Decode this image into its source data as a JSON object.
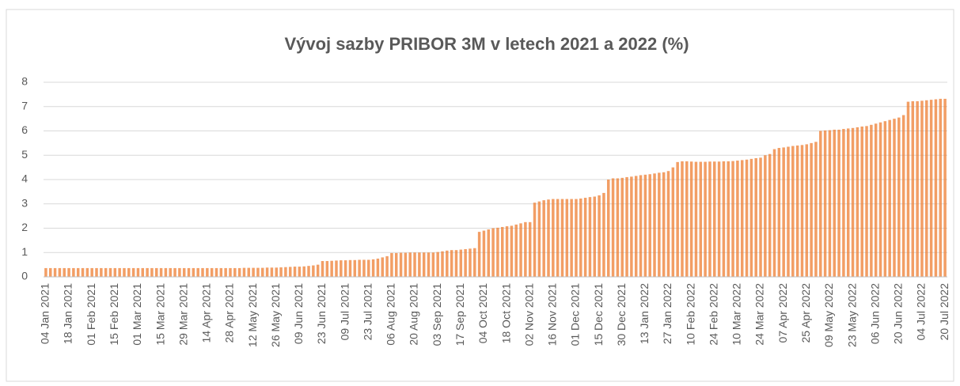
{
  "chart_data": {
    "type": "bar",
    "title": "Vývoj sazby PRIBOR 3M v letech 2021 a 2022 (%)",
    "categories": [
      "04 Jan 2021",
      null,
      null,
      null,
      null,
      "18 Jan 2021",
      null,
      null,
      null,
      null,
      "01 Feb 2021",
      null,
      null,
      null,
      null,
      "15 Feb 2021",
      null,
      null,
      null,
      null,
      "01 Mar 2021",
      null,
      null,
      null,
      null,
      "15 Mar 2021",
      null,
      null,
      null,
      null,
      "29 Mar 2021",
      null,
      null,
      null,
      null,
      "14 Apr 2021",
      null,
      null,
      null,
      null,
      "28 Apr 2021",
      null,
      null,
      null,
      null,
      "12 May 2021",
      null,
      null,
      null,
      null,
      "26 May 2021",
      null,
      null,
      null,
      null,
      "09 Jun 2021",
      null,
      null,
      null,
      null,
      "23 Jun 2021",
      null,
      null,
      null,
      null,
      "09 Jul 2021",
      null,
      null,
      null,
      null,
      "23 Jul 2021",
      null,
      null,
      null,
      null,
      "06 Aug 2021",
      null,
      null,
      null,
      null,
      "20 Aug 2021",
      null,
      null,
      null,
      null,
      "03 Sep 2021",
      null,
      null,
      null,
      null,
      "17 Sep 2021",
      null,
      null,
      null,
      null,
      "04 Oct 2021",
      null,
      null,
      null,
      null,
      "18 Oct 2021",
      null,
      null,
      null,
      null,
      "02 Nov 2021",
      null,
      null,
      null,
      null,
      "16 Nov 2021",
      null,
      null,
      null,
      null,
      "01 Dec 2021",
      null,
      null,
      null,
      null,
      "15 Dec 2021",
      null,
      null,
      null,
      null,
      "30 Dec 2021",
      null,
      null,
      null,
      null,
      "13 Jan 2022",
      null,
      null,
      null,
      null,
      "27 Jan 2022",
      null,
      null,
      null,
      null,
      "10 Feb 2022",
      null,
      null,
      null,
      null,
      "24 Feb 2022",
      null,
      null,
      null,
      null,
      "10 Mar 2022",
      null,
      null,
      null,
      null,
      "24 Mar 2022",
      null,
      null,
      null,
      null,
      "07 Apr 2022",
      null,
      null,
      null,
      null,
      "25 Apr 2022",
      null,
      null,
      null,
      null,
      "09 May 2022",
      null,
      null,
      null,
      null,
      "23 May 2022",
      null,
      null,
      null,
      null,
      "06 Jun 2022",
      null,
      null,
      null,
      null,
      "20 Jun 2022",
      null,
      null,
      null,
      null,
      "04 Jul 2022",
      null,
      null,
      null,
      null,
      "20 Jul 2022"
    ],
    "values": [
      0.36,
      0.36,
      0.36,
      0.36,
      0.36,
      0.36,
      0.36,
      0.36,
      0.36,
      0.36,
      0.36,
      0.36,
      0.36,
      0.36,
      0.36,
      0.36,
      0.36,
      0.36,
      0.36,
      0.36,
      0.36,
      0.36,
      0.36,
      0.36,
      0.36,
      0.36,
      0.36,
      0.36,
      0.36,
      0.36,
      0.36,
      0.36,
      0.36,
      0.36,
      0.36,
      0.36,
      0.36,
      0.36,
      0.36,
      0.36,
      0.36,
      0.36,
      0.36,
      0.37,
      0.37,
      0.37,
      0.37,
      0.37,
      0.38,
      0.38,
      0.38,
      0.39,
      0.4,
      0.41,
      0.42,
      0.42,
      0.43,
      0.45,
      0.47,
      0.5,
      0.65,
      0.65,
      0.66,
      0.67,
      0.68,
      0.68,
      0.69,
      0.69,
      0.7,
      0.7,
      0.7,
      0.72,
      0.75,
      0.8,
      0.85,
      0.98,
      0.98,
      0.99,
      0.99,
      1.0,
      1.0,
      1.0,
      1.0,
      1.0,
      1.0,
      1.02,
      1.05,
      1.08,
      1.1,
      1.1,
      1.12,
      1.14,
      1.16,
      1.18,
      1.85,
      1.9,
      1.95,
      2.0,
      2.02,
      2.05,
      2.08,
      2.1,
      2.15,
      2.2,
      2.25,
      2.25,
      3.05,
      3.1,
      3.15,
      3.18,
      3.2,
      3.2,
      3.2,
      3.2,
      3.2,
      3.2,
      3.22,
      3.25,
      3.28,
      3.3,
      3.35,
      3.45,
      4.0,
      4.05,
      4.05,
      4.07,
      4.1,
      4.12,
      4.15,
      4.18,
      4.2,
      4.22,
      4.25,
      4.28,
      4.3,
      4.35,
      4.5,
      4.72,
      4.75,
      4.75,
      4.74,
      4.73,
      4.73,
      4.73,
      4.74,
      4.74,
      4.74,
      4.75,
      4.75,
      4.76,
      4.78,
      4.8,
      4.82,
      4.85,
      4.88,
      4.9,
      5.0,
      5.05,
      5.25,
      5.3,
      5.32,
      5.35,
      5.38,
      5.4,
      5.42,
      5.45,
      5.5,
      5.55,
      6.0,
      6.02,
      6.03,
      6.05,
      6.05,
      6.08,
      6.1,
      6.12,
      6.15,
      6.18,
      6.2,
      6.25,
      6.3,
      6.35,
      6.4,
      6.45,
      6.5,
      6.55,
      6.65,
      7.2,
      7.22,
      7.22,
      7.24,
      7.26,
      7.28,
      7.3,
      7.32,
      7.32
    ],
    "color": "#ed7d31",
    "ylim": [
      0,
      8
    ],
    "yticks": [
      0,
      1,
      2,
      3,
      4,
      5,
      6,
      7,
      8
    ],
    "grid": true
  }
}
